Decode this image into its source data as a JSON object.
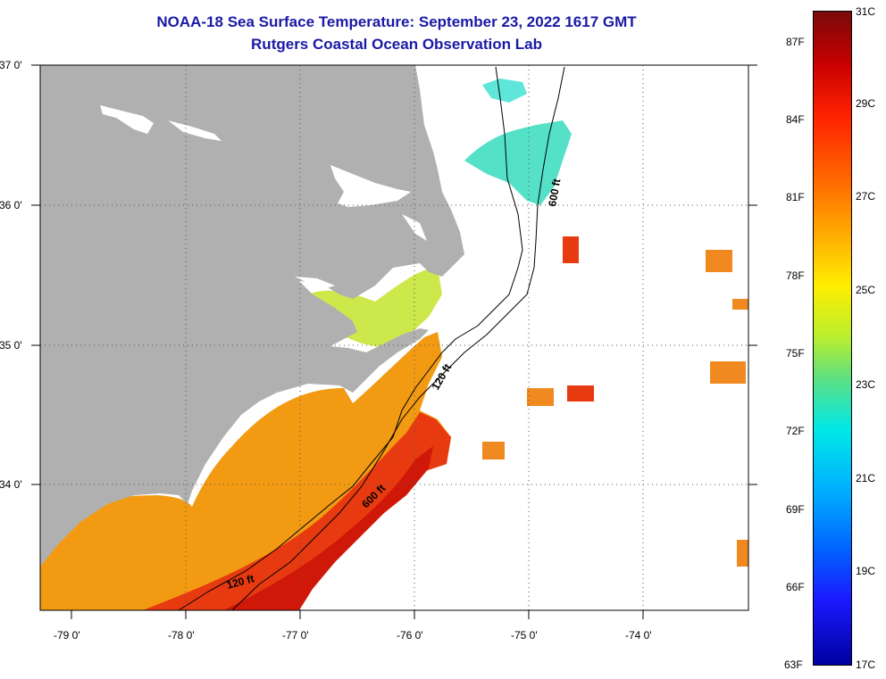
{
  "header": {
    "title_line1": "NOAA-18 Sea Surface Temperature:  September 23, 2022 1617 GMT",
    "title_line2": "Rutgers Coastal Ocean Observation Lab"
  },
  "map": {
    "lat_labels": [
      "37 0'",
      "36 0'",
      "35 0'",
      "34 0'"
    ],
    "lon_labels": [
      "-79 0'",
      "-78 0'",
      "-77 0'",
      "-76 0'",
      "-75 0'",
      "-74 0'"
    ],
    "contour_labels": [
      "600 ft",
      "120 ft",
      "600 ft",
      "120 ft"
    ],
    "colors": {
      "land": "#b0b0b0",
      "frame": "#000000"
    }
  },
  "colorbar": {
    "fahrenheit_labels": [
      "87F",
      "84F",
      "81F",
      "78F",
      "75F",
      "72F",
      "69F",
      "66F",
      "63F"
    ],
    "celsius_labels": [
      "31C",
      "29C",
      "27C",
      "25C",
      "23C",
      "21C",
      "19C",
      "17C"
    ]
  }
}
